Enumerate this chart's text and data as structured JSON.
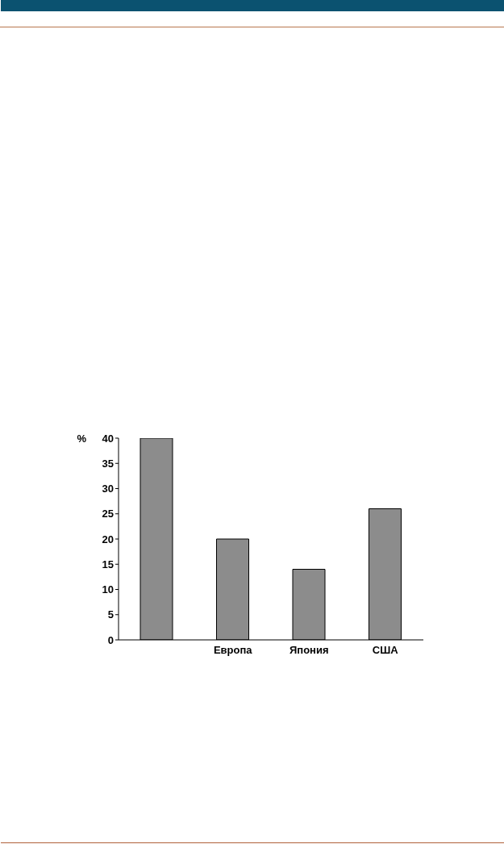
{
  "chart_data": {
    "type": "bar",
    "ylabel": "%",
    "categories": [
      null,
      "Европа",
      "Япония",
      "США"
    ],
    "values": [
      40,
      20,
      14,
      26
    ],
    "color": "#8c8c8c",
    "ylim": [
      0,
      40
    ],
    "yticks": [
      0,
      5,
      10,
      15,
      20,
      25,
      30,
      35,
      40
    ]
  }
}
